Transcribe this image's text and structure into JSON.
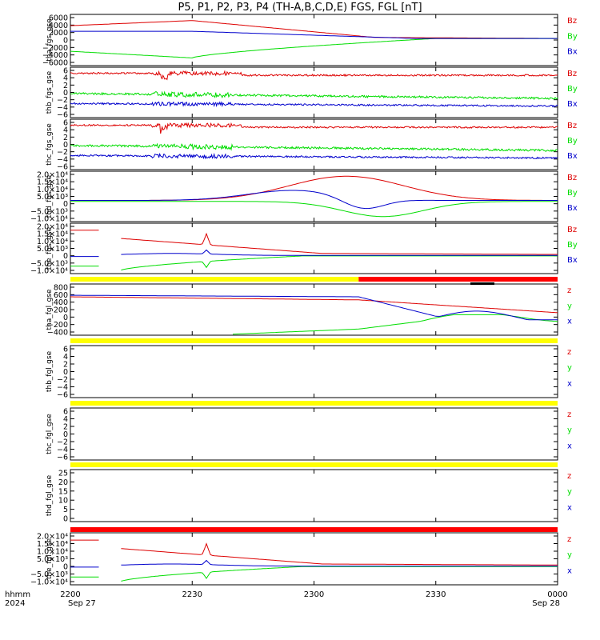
{
  "chart_data": {
    "type": "line",
    "title": "P5, P1, P2, P3, P4 (TH-A,B,C,D,E) FGS, FGL [nT]",
    "x_axis": {
      "ticks": [
        "2200",
        "2230",
        "2300",
        "2330",
        "0000"
      ],
      "date_labels": [
        "Sep 27",
        "Sep 28"
      ],
      "label_line1": "hhmm",
      "label_line2": "2024"
    },
    "panels": [
      {
        "ylabel": "tha_fgs_gse",
        "ticks": [
          "6000",
          "4000",
          "2000",
          "0",
          "−2000",
          "−4000",
          "−6000"
        ],
        "legend": [
          "Bz",
          "By",
          "Bx"
        ],
        "kind": "tha"
      },
      {
        "ylabel": "thb_fgs_gse",
        "ticks": [
          "6",
          "4",
          "2",
          "0",
          "−2",
          "−4",
          "−6"
        ],
        "legend": [
          "Bz",
          "By",
          "Bx"
        ],
        "kind": "noisy"
      },
      {
        "ylabel": "thc_fgs_gse",
        "ticks": [
          "6",
          "4",
          "2",
          "0",
          "−2",
          "−4",
          "−6"
        ],
        "legend": [
          "Bz",
          "By",
          "Bx"
        ],
        "kind": "noisy"
      },
      {
        "ylabel": "thd_fgs_gse",
        "ticks": [
          "2.0×10⁴",
          "1.5×10⁴",
          "1.0×10⁴",
          "5.0×10³",
          "0",
          "−5.0×10³",
          "−1.0×10⁴"
        ],
        "legend": [
          "Bz",
          "By",
          "Bx"
        ],
        "kind": "thd"
      },
      {
        "ylabel": "the_fgs_gse",
        "ticks": [
          "2.0×10⁴",
          "1.5×10⁴",
          "1.0×10⁴",
          "5.0×10³",
          "0",
          "−5.0×10³",
          "−1.0×10⁴"
        ],
        "legend": [
          "Bz",
          "By",
          "Bx"
        ],
        "kind": "the"
      },
      {
        "ylabel": "tha_fgl_gse",
        "ticks": [
          "800",
          "600",
          "400",
          "200",
          "0",
          "−200",
          "−400"
        ],
        "legend": [
          "z",
          "y",
          "x"
        ],
        "kind": "thafgl"
      },
      {
        "ylabel": "thb_fgl_gse",
        "ticks": [
          "6",
          "4",
          "2",
          "0",
          "−2",
          "−4",
          "−6"
        ],
        "legend": [
          "z",
          "y",
          "x"
        ],
        "kind": "empty"
      },
      {
        "ylabel": "thc_fgl_gse",
        "ticks": [
          "6",
          "4",
          "2",
          "0",
          "−2",
          "−4",
          "−6"
        ],
        "legend": [
          "z",
          "y",
          "x"
        ],
        "kind": "empty"
      },
      {
        "ylabel": "thd_fgl_gse",
        "ticks": [
          "25",
          "20",
          "15",
          "10",
          "5",
          "0"
        ],
        "legend": [
          "z",
          "y",
          "x"
        ],
        "kind": "empty"
      },
      {
        "ylabel": "the_fgl_gse",
        "ticks": [
          "2.0×10⁴",
          "1.5×10⁴",
          "1.0×10⁴",
          "5.0×10³",
          "0",
          "−5.0×10³",
          "−1.0×10⁴"
        ],
        "legend": [
          "z",
          "y",
          "x"
        ],
        "kind": "the"
      }
    ],
    "mode_bars": [
      {
        "segments": [
          {
            "color": "#ffff00",
            "from": "2200",
            "to": "2311"
          },
          {
            "color": "#ff0000",
            "from": "2311",
            "to": "0000"
          }
        ]
      },
      {
        "segments": [
          {
            "color": "#ffff00",
            "from": "2200",
            "to": "0000"
          }
        ]
      },
      {
        "segments": [
          {
            "color": "#ffff00",
            "from": "2200",
            "to": "0000"
          }
        ]
      },
      {
        "segments": [
          {
            "color": "#ffff00",
            "from": "2200",
            "to": "0000"
          }
        ]
      },
      {
        "segments": [
          {
            "color": "#ff0000",
            "from": "2200",
            "to": "0000"
          }
        ]
      }
    ],
    "colors": {
      "z": "#dd0000",
      "y": "#00dd00",
      "x": "#0000cc"
    }
  }
}
